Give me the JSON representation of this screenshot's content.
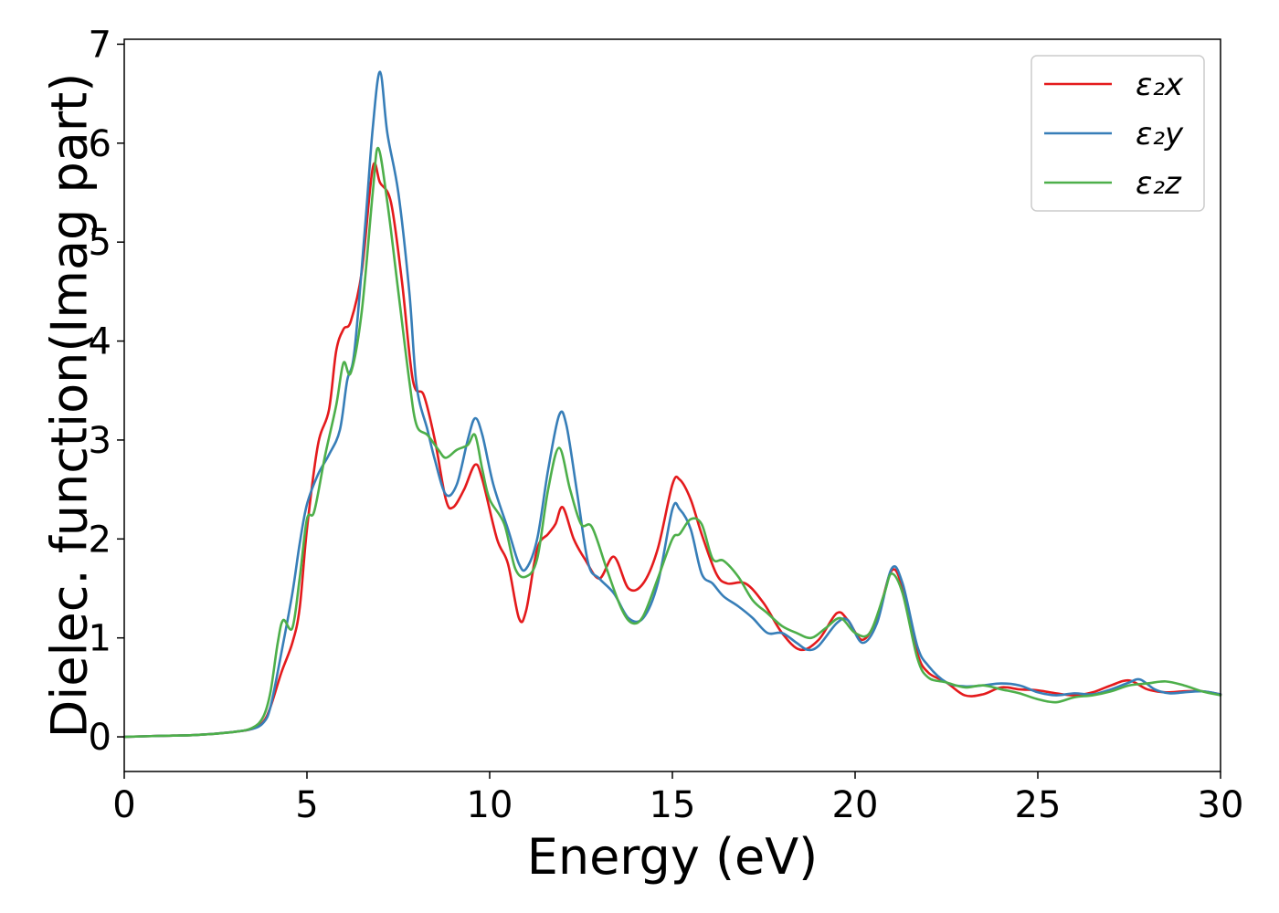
{
  "chart_data": {
    "type": "line",
    "xlabel": "Energy (eV)",
    "ylabel": "Dielec. function(Imag part)",
    "xlim": [
      0,
      30
    ],
    "ylim": [
      -0.35,
      7.05
    ],
    "xticks": [
      0,
      5,
      10,
      15,
      20,
      25,
      30
    ],
    "xtick_labels": [
      "0",
      "5",
      "10",
      "15",
      "20",
      "25",
      "30"
    ],
    "yticks": [
      0,
      1,
      2,
      3,
      4,
      5,
      6,
      7
    ],
    "ytick_labels": [
      "0",
      "1",
      "2",
      "3",
      "4",
      "5",
      "6",
      "7"
    ],
    "grid": false,
    "legend": "top-right",
    "series": [
      {
        "name": "ε₂x",
        "color": "#e41a1c",
        "points": [
          [
            0,
            0
          ],
          [
            1,
            0.01
          ],
          [
            2,
            0.02
          ],
          [
            3,
            0.05
          ],
          [
            3.5,
            0.08
          ],
          [
            3.8,
            0.15
          ],
          [
            4,
            0.3
          ],
          [
            4.3,
            0.65
          ],
          [
            4.6,
            0.95
          ],
          [
            4.8,
            1.3
          ],
          [
            5,
            2.1
          ],
          [
            5.3,
            2.95
          ],
          [
            5.6,
            3.3
          ],
          [
            5.8,
            3.9
          ],
          [
            6,
            4.12
          ],
          [
            6.2,
            4.2
          ],
          [
            6.5,
            4.7
          ],
          [
            6.8,
            5.75
          ],
          [
            7,
            5.6
          ],
          [
            7.3,
            5.4
          ],
          [
            7.6,
            4.6
          ],
          [
            7.9,
            3.6
          ],
          [
            8.2,
            3.45
          ],
          [
            8.5,
            3.0
          ],
          [
            8.8,
            2.4
          ],
          [
            9.0,
            2.32
          ],
          [
            9.3,
            2.5
          ],
          [
            9.6,
            2.75
          ],
          [
            9.8,
            2.6
          ],
          [
            10.2,
            2.0
          ],
          [
            10.5,
            1.75
          ],
          [
            10.8,
            1.2
          ],
          [
            11.0,
            1.28
          ],
          [
            11.3,
            1.9
          ],
          [
            11.6,
            2.05
          ],
          [
            11.8,
            2.15
          ],
          [
            12.0,
            2.32
          ],
          [
            12.3,
            2.0
          ],
          [
            12.6,
            1.8
          ],
          [
            13.0,
            1.6
          ],
          [
            13.4,
            1.82
          ],
          [
            13.8,
            1.5
          ],
          [
            14.2,
            1.55
          ],
          [
            14.6,
            1.9
          ],
          [
            15.0,
            2.55
          ],
          [
            15.2,
            2.6
          ],
          [
            15.5,
            2.4
          ],
          [
            15.8,
            2.05
          ],
          [
            16.2,
            1.65
          ],
          [
            16.5,
            1.55
          ],
          [
            17.0,
            1.55
          ],
          [
            17.5,
            1.35
          ],
          [
            18.0,
            1.05
          ],
          [
            18.5,
            0.88
          ],
          [
            19.0,
            0.98
          ],
          [
            19.5,
            1.25
          ],
          [
            19.8,
            1.18
          ],
          [
            20.2,
            0.98
          ],
          [
            20.6,
            1.2
          ],
          [
            21.0,
            1.68
          ],
          [
            21.3,
            1.5
          ],
          [
            21.7,
            0.85
          ],
          [
            22.0,
            0.65
          ],
          [
            22.5,
            0.55
          ],
          [
            23.0,
            0.42
          ],
          [
            23.5,
            0.43
          ],
          [
            24.0,
            0.5
          ],
          [
            24.5,
            0.48
          ],
          [
            25.0,
            0.47
          ],
          [
            25.5,
            0.44
          ],
          [
            26.0,
            0.42
          ],
          [
            26.5,
            0.45
          ],
          [
            27.0,
            0.52
          ],
          [
            27.5,
            0.57
          ],
          [
            28.0,
            0.48
          ],
          [
            28.5,
            0.45
          ],
          [
            29.0,
            0.46
          ],
          [
            29.5,
            0.46
          ],
          [
            30,
            0.43
          ]
        ]
      },
      {
        "name": "ε₂y",
        "color": "#377eb8",
        "points": [
          [
            0,
            0
          ],
          [
            1,
            0.01
          ],
          [
            2,
            0.02
          ],
          [
            3,
            0.05
          ],
          [
            3.5,
            0.08
          ],
          [
            3.8,
            0.14
          ],
          [
            4,
            0.3
          ],
          [
            4.3,
            0.85
          ],
          [
            4.6,
            1.45
          ],
          [
            4.8,
            1.95
          ],
          [
            5,
            2.35
          ],
          [
            5.3,
            2.65
          ],
          [
            5.6,
            2.85
          ],
          [
            5.9,
            3.1
          ],
          [
            6.1,
            3.6
          ],
          [
            6.3,
            3.9
          ],
          [
            6.6,
            5.2
          ],
          [
            6.8,
            6.15
          ],
          [
            7.0,
            6.72
          ],
          [
            7.2,
            6.1
          ],
          [
            7.5,
            5.5
          ],
          [
            7.8,
            4.5
          ],
          [
            8.0,
            3.55
          ],
          [
            8.3,
            3.1
          ],
          [
            8.5,
            2.8
          ],
          [
            8.8,
            2.45
          ],
          [
            9.1,
            2.55
          ],
          [
            9.4,
            3.0
          ],
          [
            9.6,
            3.22
          ],
          [
            9.8,
            3.05
          ],
          [
            10.1,
            2.55
          ],
          [
            10.5,
            2.1
          ],
          [
            10.8,
            1.75
          ],
          [
            11.0,
            1.7
          ],
          [
            11.3,
            2.0
          ],
          [
            11.6,
            2.7
          ],
          [
            11.9,
            3.25
          ],
          [
            12.1,
            3.15
          ],
          [
            12.4,
            2.45
          ],
          [
            12.7,
            1.75
          ],
          [
            13.0,
            1.6
          ],
          [
            13.4,
            1.45
          ],
          [
            13.8,
            1.2
          ],
          [
            14.2,
            1.2
          ],
          [
            14.6,
            1.55
          ],
          [
            15.0,
            2.3
          ],
          [
            15.2,
            2.3
          ],
          [
            15.5,
            2.1
          ],
          [
            15.8,
            1.65
          ],
          [
            16.1,
            1.55
          ],
          [
            16.4,
            1.42
          ],
          [
            16.8,
            1.32
          ],
          [
            17.2,
            1.2
          ],
          [
            17.6,
            1.05
          ],
          [
            18.0,
            1.05
          ],
          [
            18.4,
            0.95
          ],
          [
            18.7,
            0.88
          ],
          [
            19.0,
            0.92
          ],
          [
            19.5,
            1.15
          ],
          [
            19.8,
            1.18
          ],
          [
            20.2,
            0.95
          ],
          [
            20.6,
            1.15
          ],
          [
            21.0,
            1.7
          ],
          [
            21.3,
            1.55
          ],
          [
            21.7,
            0.92
          ],
          [
            22.0,
            0.72
          ],
          [
            22.5,
            0.55
          ],
          [
            23.0,
            0.51
          ],
          [
            23.5,
            0.52
          ],
          [
            24.0,
            0.54
          ],
          [
            24.5,
            0.52
          ],
          [
            25.0,
            0.45
          ],
          [
            25.5,
            0.42
          ],
          [
            26.0,
            0.44
          ],
          [
            26.5,
            0.43
          ],
          [
            27.0,
            0.48
          ],
          [
            27.5,
            0.55
          ],
          [
            27.8,
            0.58
          ],
          [
            28.2,
            0.48
          ],
          [
            28.6,
            0.44
          ],
          [
            29.0,
            0.45
          ],
          [
            29.5,
            0.46
          ],
          [
            30,
            0.43
          ]
        ]
      },
      {
        "name": "ε₂z",
        "color": "#4daf4a",
        "points": [
          [
            0,
            0
          ],
          [
            1,
            0.01
          ],
          [
            2,
            0.02
          ],
          [
            3,
            0.05
          ],
          [
            3.5,
            0.09
          ],
          [
            3.8,
            0.2
          ],
          [
            4.0,
            0.45
          ],
          [
            4.2,
            0.95
          ],
          [
            4.35,
            1.18
          ],
          [
            4.6,
            1.1
          ],
          [
            4.8,
            1.6
          ],
          [
            5.0,
            2.2
          ],
          [
            5.2,
            2.28
          ],
          [
            5.5,
            2.85
          ],
          [
            5.8,
            3.35
          ],
          [
            6.0,
            3.78
          ],
          [
            6.2,
            3.68
          ],
          [
            6.5,
            4.3
          ],
          [
            6.8,
            5.5
          ],
          [
            6.95,
            5.95
          ],
          [
            7.2,
            5.4
          ],
          [
            7.5,
            4.5
          ],
          [
            7.8,
            3.6
          ],
          [
            8.0,
            3.15
          ],
          [
            8.3,
            3.05
          ],
          [
            8.6,
            2.9
          ],
          [
            8.8,
            2.82
          ],
          [
            9.1,
            2.9
          ],
          [
            9.4,
            2.95
          ],
          [
            9.6,
            3.05
          ],
          [
            9.8,
            2.7
          ],
          [
            10.0,
            2.4
          ],
          [
            10.4,
            2.15
          ],
          [
            10.7,
            1.7
          ],
          [
            11.0,
            1.62
          ],
          [
            11.3,
            1.8
          ],
          [
            11.6,
            2.5
          ],
          [
            11.9,
            2.92
          ],
          [
            12.2,
            2.5
          ],
          [
            12.5,
            2.15
          ],
          [
            12.8,
            2.12
          ],
          [
            13.2,
            1.7
          ],
          [
            13.6,
            1.3
          ],
          [
            13.9,
            1.15
          ],
          [
            14.2,
            1.22
          ],
          [
            14.6,
            1.6
          ],
          [
            15.0,
            2.0
          ],
          [
            15.2,
            2.05
          ],
          [
            15.5,
            2.2
          ],
          [
            15.8,
            2.15
          ],
          [
            16.1,
            1.8
          ],
          [
            16.4,
            1.78
          ],
          [
            16.8,
            1.62
          ],
          [
            17.2,
            1.38
          ],
          [
            17.6,
            1.25
          ],
          [
            18.0,
            1.12
          ],
          [
            18.4,
            1.05
          ],
          [
            18.8,
            1.0
          ],
          [
            19.2,
            1.1
          ],
          [
            19.6,
            1.2
          ],
          [
            20.0,
            1.05
          ],
          [
            20.4,
            1.05
          ],
          [
            20.8,
            1.45
          ],
          [
            21.0,
            1.65
          ],
          [
            21.3,
            1.45
          ],
          [
            21.7,
            0.8
          ],
          [
            22.0,
            0.6
          ],
          [
            22.5,
            0.55
          ],
          [
            23.0,
            0.5
          ],
          [
            23.5,
            0.52
          ],
          [
            24.0,
            0.48
          ],
          [
            24.5,
            0.44
          ],
          [
            25.0,
            0.38
          ],
          [
            25.5,
            0.35
          ],
          [
            26.0,
            0.4
          ],
          [
            26.5,
            0.42
          ],
          [
            27.0,
            0.46
          ],
          [
            27.5,
            0.52
          ],
          [
            28.0,
            0.54
          ],
          [
            28.5,
            0.56
          ],
          [
            29.0,
            0.52
          ],
          [
            29.5,
            0.46
          ],
          [
            30,
            0.42
          ]
        ]
      }
    ]
  }
}
